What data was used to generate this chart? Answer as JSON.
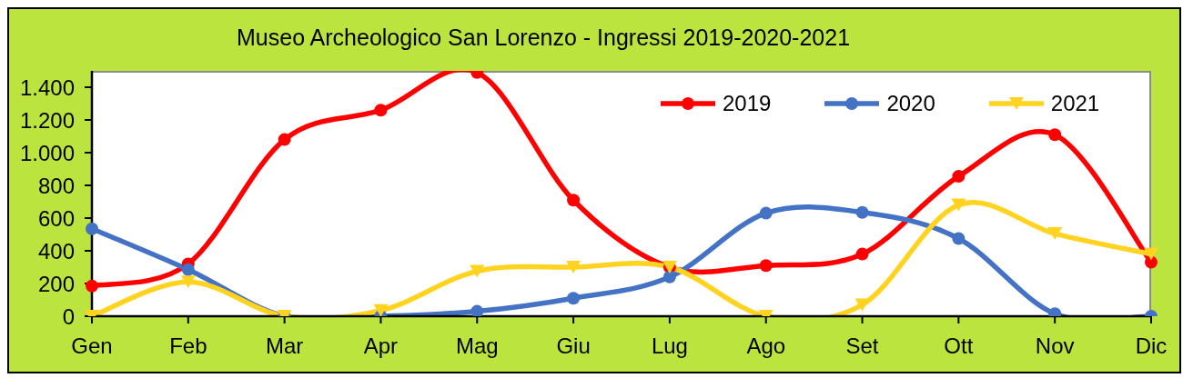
{
  "chart_data": {
    "type": "line",
    "title": "Museo Archeologico San Lorenzo - Ingressi 2019-2020-2021",
    "categories": [
      "Gen",
      "Feb",
      "Mar",
      "Apr",
      "Mag",
      "Giu",
      "Lug",
      "Ago",
      "Set",
      "Ott",
      "Nov",
      "Dic"
    ],
    "series": [
      {
        "name": "2019",
        "color": "#ff0000",
        "marker": "circle",
        "values": [
          185,
          320,
          1080,
          1260,
          1490,
          710,
          300,
          310,
          380,
          855,
          1110,
          330
        ]
      },
      {
        "name": "2020",
        "color": "#4472c4",
        "marker": "circle",
        "values": [
          535,
          285,
          0,
          0,
          30,
          110,
          240,
          630,
          635,
          475,
          15,
          0
        ]
      },
      {
        "name": "2021",
        "color": "#ffd320",
        "marker": "triangle",
        "values": [
          0,
          210,
          0,
          35,
          275,
          300,
          300,
          0,
          70,
          680,
          505,
          380
        ]
      }
    ],
    "ylim": [
      0,
      1500
    ],
    "yticks": [
      0,
      200,
      400,
      600,
      800,
      {
        "value": 1000,
        "label": "1.000"
      },
      {
        "value": 1200,
        "label": "1.200"
      },
      {
        "value": 1400,
        "label": "1.400"
      }
    ],
    "legend": "top right"
  }
}
